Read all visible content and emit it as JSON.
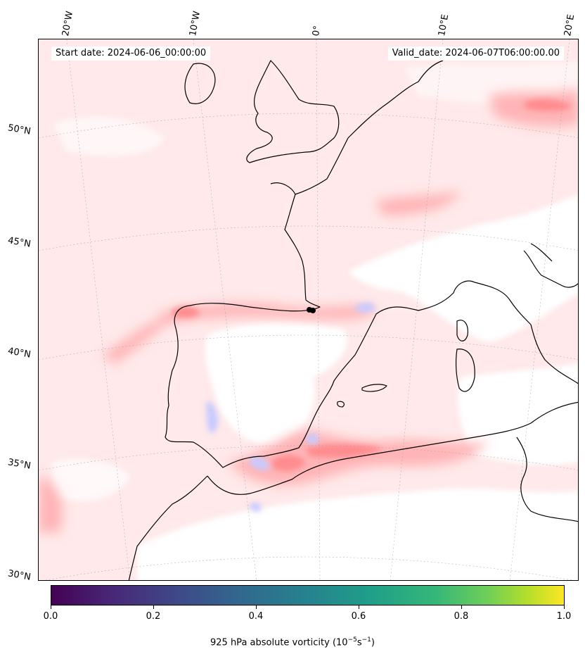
{
  "header": {
    "start_label": "Start date: 2024-06-06_00:00:00",
    "valid_label": "Valid_date: 2024-06-07T06:00:00.00"
  },
  "map": {
    "projection": "lambert-conformal",
    "gridlines": true,
    "field_colormap": "bwr",
    "lon_ticks": [
      "20°W",
      "10°W",
      "0°",
      "10°E",
      "20°E"
    ],
    "lat_ticks": [
      "50°N",
      "45°N",
      "40°N",
      "35°N",
      "30°N"
    ],
    "region": "Western Europe, Iberian Peninsula and Western Mediterranean",
    "colors": {
      "positive": "#ff9ea0",
      "weak_positive": "#ffe9ea",
      "negative": "#c8caff",
      "coast": "#000000"
    }
  },
  "colorbar": {
    "colormap": "viridis",
    "ticks": [
      "0.0",
      "0.2",
      "0.4",
      "0.6",
      "0.8",
      "1.0"
    ],
    "label_prefix": "925 hPa absolute vorticity (10",
    "label_exp1": "−5",
    "label_mid": "s",
    "label_exp2": "−1",
    "label_suffix": ")"
  }
}
